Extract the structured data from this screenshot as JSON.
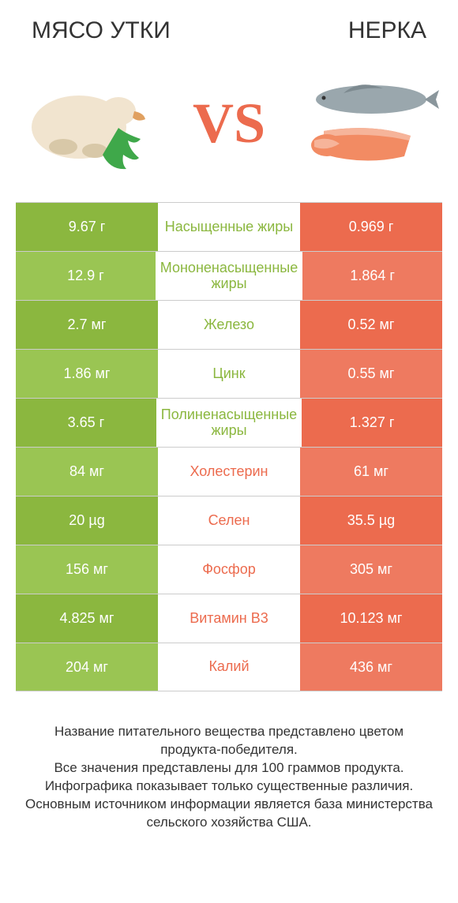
{
  "titles": {
    "left": "Мясо Утки",
    "right": "Нерка"
  },
  "vs": "VS",
  "colors": {
    "left": "#8bb73f",
    "left_alt": "#9ac553",
    "right": "#ec6b4e",
    "right_alt": "#ee7a60",
    "mid_text_left": "#8bb73f",
    "mid_text_right": "#ec6b4e",
    "background": "#ffffff",
    "border": "#cccccc",
    "title_text": "#333333"
  },
  "rows": [
    {
      "left": "9.67 г",
      "label": "Насыщенные жиры",
      "right": "0.969 г",
      "winner": "left"
    },
    {
      "left": "12.9 г",
      "label": "Мононенасыщенные жиры",
      "right": "1.864 г",
      "winner": "left"
    },
    {
      "left": "2.7 мг",
      "label": "Железо",
      "right": "0.52 мг",
      "winner": "left"
    },
    {
      "left": "1.86 мг",
      "label": "Цинк",
      "right": "0.55 мг",
      "winner": "left"
    },
    {
      "left": "3.65 г",
      "label": "Полиненасыщенные жиры",
      "right": "1.327 г",
      "winner": "left"
    },
    {
      "left": "84 мг",
      "label": "Холестерин",
      "right": "61 мг",
      "winner": "right"
    },
    {
      "left": "20 µg",
      "label": "Селен",
      "right": "35.5 µg",
      "winner": "right"
    },
    {
      "left": "156 мг",
      "label": "Фосфор",
      "right": "305 мг",
      "winner": "right"
    },
    {
      "left": "4.825 мг",
      "label": "Витамин B3",
      "right": "10.123 мг",
      "winner": "right"
    },
    {
      "left": "204 мг",
      "label": "Калий",
      "right": "436 мг",
      "winner": "right"
    }
  ],
  "footer": [
    "Название питательного вещества представлено цветом продукта-победителя.",
    "Все значения представлены для 100 граммов продукта.",
    "Инфографика показывает только существенные различия.",
    "Основным источником информации является база министерства сельского хозяйства США."
  ]
}
